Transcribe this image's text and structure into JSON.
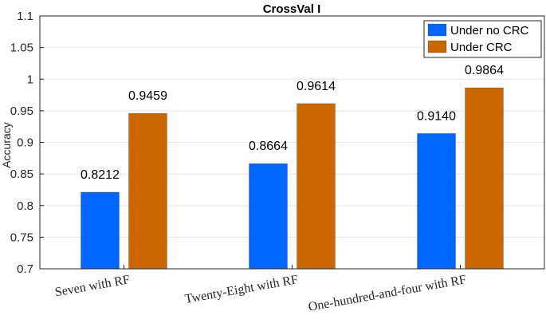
{
  "chart_data": {
    "type": "bar",
    "title": "CrossVal I",
    "xlabel": "",
    "ylabel": "Accuracy",
    "ylim": [
      0.7,
      1.1
    ],
    "yticks": [
      0.7,
      0.75,
      0.8,
      0.85,
      0.9,
      0.95,
      1,
      1.05,
      1.1
    ],
    "ytick_labels": [
      "0.7",
      "0.75",
      "0.8",
      "0.85",
      "0.9",
      "0.95",
      "1",
      "1.05",
      "1.1"
    ],
    "grid": true,
    "legend_position": "top-right",
    "categories": [
      "Seven with RF",
      "Twenty-Eight with RF",
      "One-hundred-and-four with RF"
    ],
    "series": [
      {
        "name": "Under no CRC",
        "color": "#0066ff",
        "values": [
          0.8212,
          0.8664,
          0.914
        ],
        "labels": [
          "0.8212",
          "0.8664",
          "0.9140"
        ]
      },
      {
        "name": "Under CRC",
        "color": "#cc6600",
        "values": [
          0.9459,
          0.9614,
          0.9864
        ],
        "labels": [
          "0.9459",
          "0.9614",
          "0.9864"
        ]
      }
    ]
  }
}
